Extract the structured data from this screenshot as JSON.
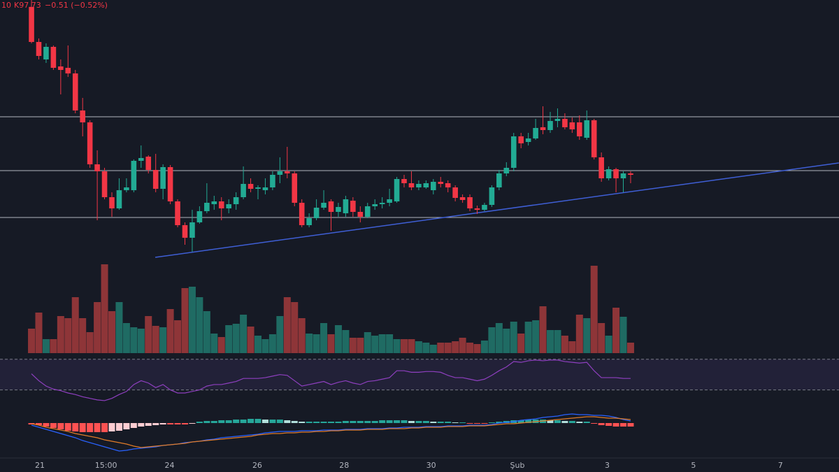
{
  "chart_data": {
    "type": "candlestick",
    "header": {
      "open_fragment": "10",
      "close": "K97.73",
      "change": "−0.51 (−0.52%)"
    },
    "xlim": [
      -4.31,
      110.52
    ],
    "xticks": [
      {
        "value": 1.15,
        "label": "21"
      },
      {
        "value": 10.2,
        "label": "15:00"
      },
      {
        "value": 18.9,
        "label": "24"
      },
      {
        "value": 30.9,
        "label": "26"
      },
      {
        "value": 42.8,
        "label": "28"
      },
      {
        "value": 54.7,
        "label": "30"
      },
      {
        "value": 66.5,
        "label": "Şub"
      },
      {
        "value": 78.8,
        "label": "3"
      },
      {
        "value": 90.6,
        "label": "5"
      },
      {
        "value": 102.5,
        "label": "7"
      }
    ],
    "ylim": [
      88,
      108
    ],
    "up_color": "#22ab94",
    "down_color": "#f23645",
    "volume_up_color": "#1f6b63",
    "volume_down_color": "#8e3538",
    "candles": [
      [
        107.6,
        108,
        105.52,
        105.6
      ],
      [
        105.6,
        105.8,
        104.6,
        104.8
      ],
      [
        104.6,
        105.52,
        104.4,
        105.32
      ],
      [
        105.32,
        105.4,
        104,
        104.12
      ],
      [
        104.2,
        104.6,
        102.6,
        104
      ],
      [
        104.12,
        105.4,
        103.6,
        103.8
      ],
      [
        103.8,
        104,
        101.52,
        101.68
      ],
      [
        101.68,
        102.4,
        100.2,
        101
      ],
      [
        101,
        101.12,
        98.4,
        98.6
      ],
      [
        98.6,
        99.4,
        95.4,
        98.2
      ],
      [
        98.2,
        98.4,
        96.6,
        96.72
      ],
      [
        96.72,
        97,
        95.6,
        96.08
      ],
      [
        96.08,
        97.8,
        96,
        97.12
      ],
      [
        97.12,
        97.8,
        97,
        97.28
      ],
      [
        97.12,
        98.88,
        97,
        98.8
      ],
      [
        98.8,
        99.68,
        98.4,
        98.96
      ],
      [
        99.04,
        99.12,
        98.08,
        98.28
      ],
      [
        98.28,
        99.2,
        97,
        97.2
      ],
      [
        97.2,
        98.6,
        96.6,
        98.44
      ],
      [
        98.44,
        98.56,
        96.32,
        96.48
      ],
      [
        96.48,
        96.6,
        95,
        95.12
      ],
      [
        95.12,
        95.28,
        94,
        94.4
      ],
      [
        94.4,
        96,
        93.6,
        95.28
      ],
      [
        95.28,
        96.2,
        95.2,
        95.92
      ],
      [
        95.92,
        97.52,
        95.8,
        96.4
      ],
      [
        96.32,
        96.8,
        96,
        96.48
      ],
      [
        96.48,
        96.72,
        95.4,
        96.08
      ],
      [
        96.08,
        96.6,
        95.8,
        96.32
      ],
      [
        96.32,
        97,
        96,
        96.72
      ],
      [
        96.72,
        98.48,
        96.6,
        97.48
      ],
      [
        97.48,
        97.8,
        97,
        97.2
      ],
      [
        97.2,
        97.4,
        96.6,
        97.28
      ],
      [
        97.12,
        97.8,
        96.88,
        97.28
      ],
      [
        97.28,
        98.2,
        97.12,
        98
      ],
      [
        98,
        99,
        97.52,
        98.2
      ],
      [
        98.2,
        99.6,
        97.8,
        98.08
      ],
      [
        98.08,
        98.2,
        96.2,
        96.4
      ],
      [
        96.4,
        96.6,
        95,
        95.12
      ],
      [
        95.12,
        95.8,
        95,
        95.52
      ],
      [
        95.52,
        96.6,
        95.4,
        96.12
      ],
      [
        96.12,
        97.12,
        96,
        96.4
      ],
      [
        96.48,
        96.6,
        94.8,
        95.88
      ],
      [
        95.88,
        96.4,
        95.6,
        96.16
      ],
      [
        95.8,
        96.8,
        95.6,
        96.6
      ],
      [
        96.52,
        96.72,
        95.6,
        95.88
      ],
      [
        95.88,
        96.2,
        95.28,
        95.6
      ],
      [
        95.6,
        96.4,
        95.52,
        96.2
      ],
      [
        96.2,
        96.6,
        96,
        96.32
      ],
      [
        96.32,
        96.72,
        96.08,
        96.4
      ],
      [
        96.4,
        97.2,
        96.2,
        96.6
      ],
      [
        96.48,
        97.88,
        96.4,
        97.76
      ],
      [
        97.76,
        98,
        97.28,
        97.52
      ],
      [
        97.52,
        98.2,
        97.12,
        97.28
      ],
      [
        97.28,
        97.68,
        97.12,
        97.48
      ],
      [
        97.28,
        97.68,
        97.2,
        97.52
      ],
      [
        97.12,
        97.76,
        96.88,
        97.6
      ],
      [
        97.6,
        97.88,
        97.28,
        97.48
      ],
      [
        97.52,
        97.68,
        97,
        97.28
      ],
      [
        97.28,
        97.4,
        96.48,
        96.68
      ],
      [
        96.72,
        96.88,
        96.4,
        96.56
      ],
      [
        96.72,
        96.88,
        95.92,
        96.08
      ],
      [
        96.08,
        96.24,
        95.76,
        96
      ],
      [
        96,
        96.4,
        95.92,
        96.28
      ],
      [
        96.28,
        97.4,
        96.16,
        97.28
      ],
      [
        97.28,
        98.28,
        97.12,
        98.08
      ],
      [
        98.08,
        98.72,
        97.92,
        98.4
      ],
      [
        98.4,
        100.4,
        98.2,
        100.2
      ],
      [
        100.2,
        100.4,
        99.52,
        99.8
      ],
      [
        99.88,
        100.4,
        99.68,
        100.08
      ],
      [
        100.08,
        101.2,
        100,
        100.68
      ],
      [
        100.72,
        101.92,
        100.32,
        100.56
      ],
      [
        100.56,
        101.6,
        100.4,
        101.08
      ],
      [
        101.08,
        101.8,
        100.72,
        101.2
      ],
      [
        101.2,
        101.52,
        100.6,
        100.72
      ],
      [
        101,
        101.28,
        100.4,
        100.6
      ],
      [
        101,
        101.4,
        100,
        100.2
      ],
      [
        100.12,
        101.68,
        100,
        101.12
      ],
      [
        101.12,
        101.2,
        98.88,
        99
      ],
      [
        99,
        99.28,
        97.6,
        97.8
      ],
      [
        97.8,
        98.48,
        97.68,
        98.32
      ],
      [
        98.32,
        98.4,
        97,
        97.8
      ],
      [
        97.8,
        98.2,
        97,
        98.08
      ],
      [
        98.08,
        98.2,
        97.52,
        98
      ]
    ],
    "levels": [
      101.32,
      98.24,
      95.56
    ],
    "level_color": "#b2b5be",
    "trend_line": [
      [
        16.94,
        93.28
      ],
      [
        110.5,
        98.68
      ]
    ],
    "trend_color": "#3f5fd6",
    "volume_lim": [
      0,
      130
    ],
    "volume": [
      35,
      58,
      20,
      20,
      53,
      50,
      80,
      50,
      30,
      73,
      127,
      60,
      73,
      43,
      37,
      35,
      53,
      39,
      37,
      63,
      47,
      93,
      95,
      80,
      60,
      28,
      23,
      40,
      42,
      55,
      38,
      25,
      20,
      27,
      53,
      80,
      73,
      50,
      28,
      27,
      43,
      27,
      40,
      33,
      22,
      22,
      30,
      25,
      27,
      27,
      20,
      20,
      20,
      17,
      15,
      12,
      15,
      15,
      17,
      22,
      15,
      13,
      18,
      37,
      43,
      35,
      45,
      28,
      45,
      47,
      67,
      33,
      33,
      25,
      17,
      55,
      50,
      125,
      43,
      25,
      65,
      52,
      15
    ],
    "rsi_lim": [
      5,
      78
    ],
    "rsi_band": [
      30,
      70
    ],
    "rsi_color": "#8e3fbf",
    "rsi": [
      51,
      42,
      35,
      31,
      29,
      26,
      24,
      21,
      19,
      17,
      16,
      19,
      24,
      28,
      37,
      42,
      39,
      33,
      37,
      30,
      26,
      26,
      28,
      30,
      35,
      37,
      37,
      39,
      41,
      45,
      45,
      45,
      46,
      48,
      50,
      49,
      42,
      35,
      37,
      39,
      41,
      37,
      40,
      42,
      39,
      37,
      41,
      42,
      44,
      46,
      55,
      55,
      53,
      53,
      54,
      54,
      53,
      49,
      46,
      46,
      44,
      42,
      44,
      49,
      55,
      60,
      67,
      66,
      68,
      69,
      68,
      69,
      69,
      67,
      66,
      65,
      66,
      55,
      46,
      46,
      46,
      45,
      45
    ],
    "macd_lim": [
      -50,
      20
    ],
    "macd_colors": {
      "macd": "#2962ff",
      "signal": "#e07b28",
      "up_strong": "#26a69a",
      "up_weak": "#b2dfdb",
      "down_strong": "#ff5252",
      "down_weak": "#ffcdd2"
    },
    "macd": [
      -3,
      -6,
      -9,
      -12,
      -15,
      -18,
      -21,
      -25,
      -28,
      -31,
      -34,
      -37,
      -40,
      -39,
      -37,
      -36,
      -35,
      -34,
      -32,
      -31,
      -30,
      -28,
      -27,
      -26,
      -24,
      -23,
      -21,
      -20,
      -19,
      -18,
      -17,
      -16,
      -14,
      -13,
      -12,
      -12,
      -12,
      -11,
      -11,
      -11,
      -10,
      -10,
      -10,
      -9,
      -9,
      -9,
      -8,
      -8,
      -8,
      -7,
      -7,
      -6,
      -6,
      -6,
      -5,
      -5,
      -5,
      -4,
      -4,
      -4,
      -3,
      -3,
      -3,
      -2,
      0,
      1,
      2,
      4,
      5,
      6,
      8,
      9,
      10,
      12,
      13,
      12,
      12,
      11,
      11,
      10,
      8,
      5,
      3
    ],
    "signal": [
      -1,
      -3,
      -6,
      -8,
      -10,
      -12,
      -15,
      -17,
      -19,
      -21,
      -24,
      -26,
      -28,
      -30,
      -33,
      -35,
      -34,
      -33,
      -32,
      -31,
      -30,
      -29,
      -27,
      -26,
      -25,
      -24,
      -23,
      -22,
      -21,
      -20,
      -19,
      -17,
      -16,
      -15,
      -15,
      -14,
      -14,
      -13,
      -13,
      -12,
      -12,
      -11,
      -11,
      -10,
      -10,
      -10,
      -9,
      -9,
      -9,
      -8,
      -8,
      -8,
      -7,
      -7,
      -6,
      -6,
      -6,
      -5,
      -5,
      -5,
      -4,
      -4,
      -4,
      -3,
      -2,
      -1,
      -1,
      0,
      1,
      2,
      3,
      4,
      5,
      6,
      7,
      8,
      9,
      9,
      8,
      7,
      7,
      6,
      5
    ],
    "histogram": [
      -2,
      -3,
      -5,
      -7,
      -9,
      -11,
      -12,
      -13,
      -13,
      -13,
      -13,
      -12,
      -11,
      -9,
      -7,
      -5,
      -4,
      -3,
      -2,
      -2,
      -2,
      -2,
      -1,
      2,
      3,
      3,
      4,
      4,
      5,
      5,
      6,
      6,
      5,
      5,
      5,
      4,
      3,
      2,
      2,
      2,
      2,
      2,
      2,
      3,
      3,
      3,
      3,
      3,
      4,
      4,
      4,
      4,
      3,
      3,
      3,
      2,
      2,
      2,
      1,
      1,
      -1,
      -1,
      -1,
      1,
      2,
      3,
      4,
      4,
      5,
      5,
      5,
      4,
      4,
      3,
      3,
      2,
      2,
      -1,
      -3,
      -4,
      -5,
      -5,
      -5
    ]
  }
}
